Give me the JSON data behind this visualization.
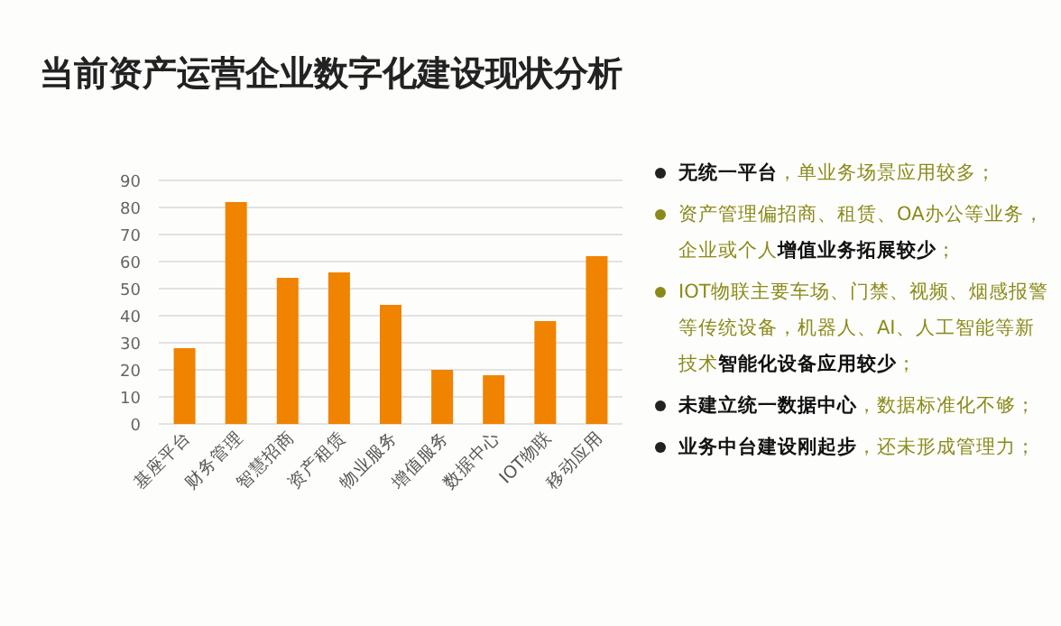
{
  "chart_data": [
    {
      "type": "bar",
      "title": "当前资产运营企业数字化建设现状分析",
      "categories": [
        "基座平台",
        "财务管理",
        "智慧招商",
        "资产租赁",
        "物业服务",
        "增值服务",
        "数据中心",
        "IOT物联",
        "移动应用"
      ],
      "values": [
        28,
        82,
        54,
        56,
        44,
        20,
        18,
        38,
        62
      ],
      "color": "#f08300",
      "ylim": [
        0,
        90
      ],
      "yticks": [
        0,
        10,
        20,
        30,
        40,
        50,
        60,
        70,
        80,
        90
      ],
      "grid": "y"
    },
    {
      "type": "other",
      "annotations": [
        "**无统一平台**，单业务场景应用较多；",
        "资产管理偏招商、租赁、OA办公等业务，企业或个人**增值业务拓展较少**；",
        "IOT物联主要车场、门禁、视频、烟感报警等传统设备，机器人、AI、人工智能等新技术**智能化设备应用较少**；",
        "**未建立统一数据中心**，数据标准化不够；",
        "**业务中台建设刚起步**，还未形成管理力；"
      ]
    }
  ]
}
